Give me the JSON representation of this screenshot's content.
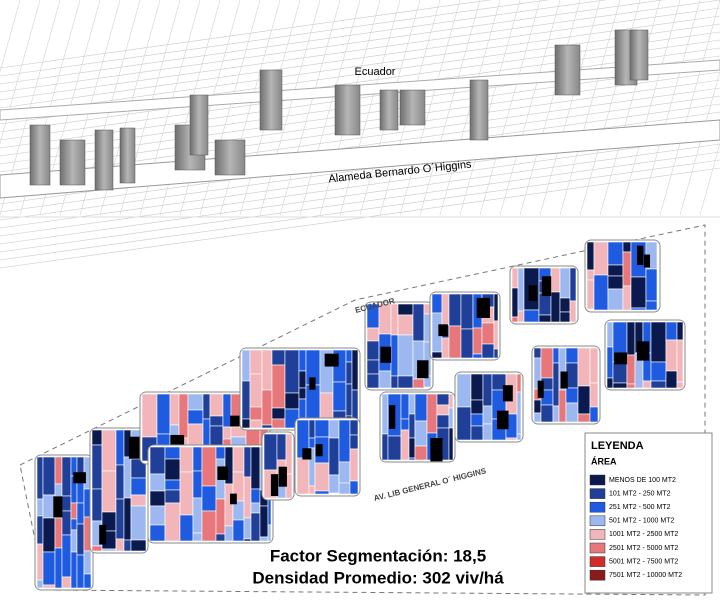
{
  "top_view": {
    "street_labels": [
      "Ecuador",
      "Alameda Bernardo O´Higgins"
    ]
  },
  "map": {
    "street_labels": [
      "ECUADOR",
      "AV. LIB GENERAL O´ HIGGINS"
    ],
    "legend": {
      "title": "LEYENDA",
      "subtitle": "ÁREA",
      "items": [
        {
          "label": "MENOS DE 100 MT2",
          "color": "#0b1a4e"
        },
        {
          "label": "101 MT2 - 250 MT2",
          "color": "#1f3f99"
        },
        {
          "label": "251 MT2 - 500 MT2",
          "color": "#1f5be0"
        },
        {
          "label": "501 MT2 - 1000 MT2",
          "color": "#9db8f0"
        },
        {
          "label": "1001 MT2 - 2500 MT2",
          "color": "#f2b6ba"
        },
        {
          "label": "2501 MT2 - 5000 MT2",
          "color": "#e8777c"
        },
        {
          "label": "5001 MT2 - 7500 MT2",
          "color": "#d32a2a"
        },
        {
          "label": "7501 MT2 - 10000 MT2",
          "color": "#8b1a1a"
        }
      ]
    }
  },
  "stats": [
    "Factor Segmentación: 18,5",
    "Densidad Promedio: 302 viv/há"
  ]
}
